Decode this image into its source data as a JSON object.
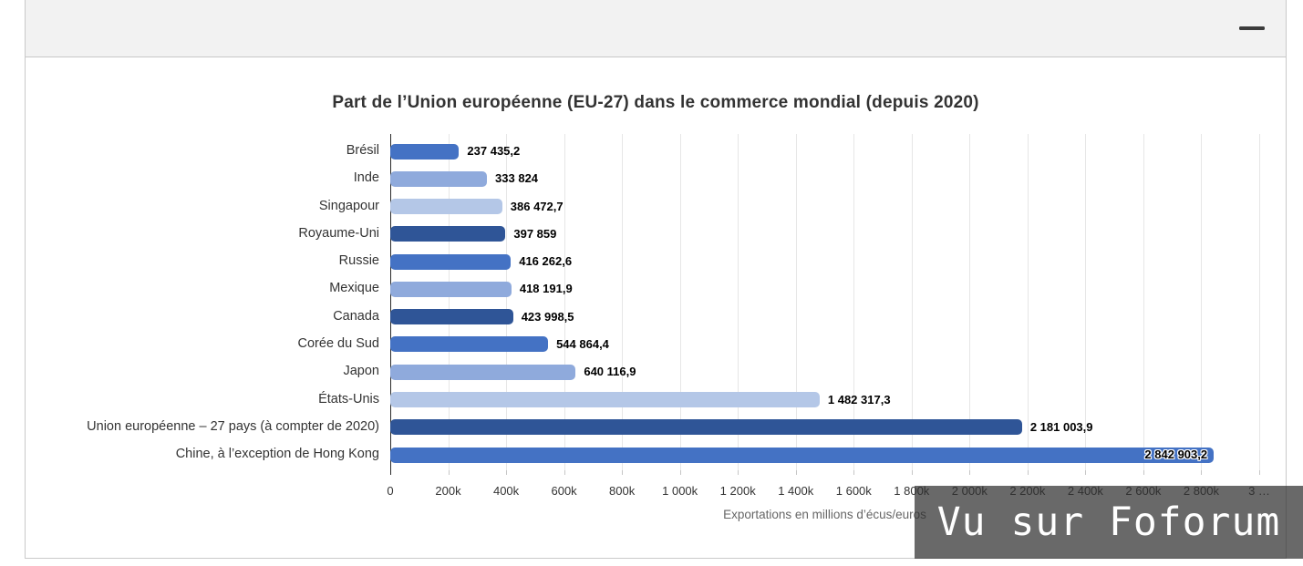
{
  "header": {
    "menu_icon": "hamburger-menu-icon"
  },
  "chart_data": {
    "type": "bar",
    "orientation": "horizontal",
    "title": "Part de l’Union européenne (EU-27) dans le commerce mondial (depuis 2020)",
    "xlabel": "Exportations en millions d’écus/euros",
    "ylabel": "",
    "xlim": [
      0,
      3000000
    ],
    "grid": true,
    "categories": [
      "Brésil",
      "Inde",
      "Singapour",
      "Royaume-Uni",
      "Russie",
      "Mexique",
      "Canada",
      "Corée du Sud",
      "Japon",
      "États-Unis",
      "Union européenne – 27 pays (à compter de 2020)",
      "Chine, à l’exception de Hong Kong"
    ],
    "values": [
      237435.2,
      333824,
      386472.7,
      397859,
      416262.6,
      418191.9,
      423998.5,
      544864.4,
      640116.9,
      1482317.3,
      2181003.9,
      2842903.2
    ],
    "value_labels": [
      "237 435,2",
      "333 824",
      "386 472,7",
      "397 859",
      "416 262,6",
      "418 191,9",
      "423 998,5",
      "544 864,4",
      "640 116,9",
      "1 482 317,3",
      "2 181 003,9",
      "2 842 903,2"
    ],
    "value_label_inside": [
      false,
      false,
      false,
      false,
      false,
      false,
      false,
      false,
      false,
      false,
      false,
      true
    ],
    "bar_colors": [
      "#4472c4",
      "#8faadc",
      "#b4c7e7",
      "#2f5597",
      "#4472c4",
      "#8faadc",
      "#2f5597",
      "#4472c4",
      "#8faadc",
      "#b4c7e7",
      "#2f5597",
      "#4472c4"
    ],
    "x_tick_values": [
      0,
      200000,
      400000,
      600000,
      800000,
      1000000,
      1200000,
      1400000,
      1600000,
      1800000,
      2000000,
      2200000,
      2400000,
      2600000,
      2800000,
      3000000
    ],
    "x_ticks": [
      "0",
      "200k",
      "400k",
      "600k",
      "800k",
      "1 000k",
      "1 200k",
      "1 400k",
      "1 600k",
      "1 800k",
      "2 000k",
      "2 200k",
      "2 400k",
      "2 600k",
      "2 800k",
      "3 …"
    ]
  },
  "watermark": {
    "text": "Vu sur Foforum"
  },
  "colors": {
    "header_bg": "#f2f2f2",
    "panel_border": "#c9c9c9",
    "grid": "#e6e6e6",
    "axis_line": "#2a2a2a",
    "title_text": "#333333",
    "category_text": "#333333",
    "value_text": "#000000",
    "axis_title_text": "#666666",
    "menu_icon": "#3c3c3c",
    "watermark_text": "#ffffff"
  }
}
